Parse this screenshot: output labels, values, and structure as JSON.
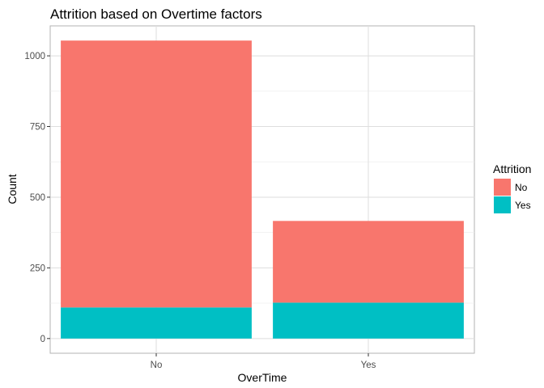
{
  "chart_data": {
    "type": "bar",
    "stacked": true,
    "title": "Attrition based on Overtime factors",
    "xlabel": "OverTime",
    "ylabel": "Count",
    "categories": [
      "No",
      "Yes"
    ],
    "series": [
      {
        "name": "No",
        "values": [
          944,
          289
        ],
        "color": "#F8766D"
      },
      {
        "name": "Yes",
        "values": [
          110,
          127
        ],
        "color": "#00BFC4"
      }
    ],
    "ylim": [
      -52,
      1106
    ],
    "yticks": [
      0,
      250,
      500,
      750,
      1000
    ],
    "grid": true,
    "legend": {
      "title": "Attrition",
      "position": "right"
    }
  }
}
